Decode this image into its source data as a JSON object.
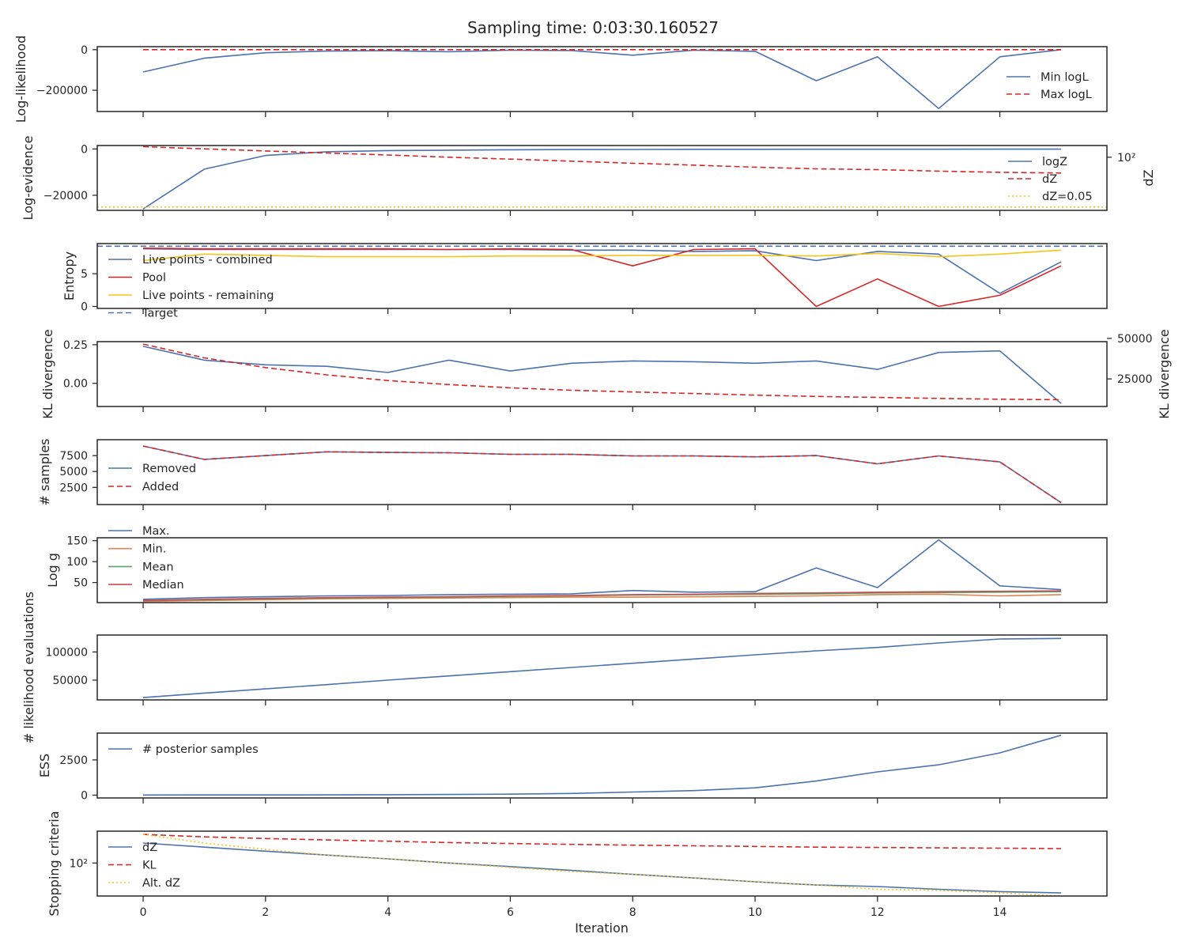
{
  "title": "Sampling time: 0:03:30.160527",
  "colors": {
    "blue": "#4c72b0",
    "red": "#d62728",
    "yellow": "#f5c518",
    "orange": "#dd8452",
    "green": "#55a868",
    "crimson": "#c44e52",
    "axis": "#262626"
  },
  "chart_data": [
    {
      "id": "loglikelihood",
      "type": "line",
      "ylabel": "Log-likelihood",
      "ylim": [
        -305000,
        15000
      ],
      "yticks": [
        0,
        -200000
      ],
      "ytick_labels": [
        "0",
        "−200000"
      ],
      "legend": "lower-right",
      "series": [
        {
          "name": "Min logL",
          "color": "blue",
          "dash": "solid",
          "x": [
            0,
            1,
            2,
            3,
            4,
            5,
            6,
            7,
            8,
            9,
            10,
            11,
            12,
            13,
            14,
            15
          ],
          "y": [
            -110000,
            -42000,
            -15000,
            -7000,
            -5000,
            -10000,
            -2000,
            -4000,
            -27000,
            -2000,
            -8000,
            -153000,
            -35000,
            -290000,
            -35000,
            0
          ]
        },
        {
          "name": "Max logL",
          "color": "red",
          "dash": "dashed",
          "x": [
            0,
            15
          ],
          "y": [
            0,
            0
          ]
        }
      ]
    },
    {
      "id": "logevidence",
      "type": "line",
      "ylabel": "Log-evidence",
      "y2label": "dZ",
      "ylim": [
        -26500,
        1500
      ],
      "yticks": [
        0,
        -20000
      ],
      "ytick_labels": [
        "0",
        "−20000"
      ],
      "y2ticks": [
        100
      ],
      "y2tick_labels": [
        "10²"
      ],
      "y2_scale": "log",
      "y2lim": [
        0.03,
        600
      ],
      "legend": "lower-right",
      "series": [
        {
          "name": "logZ",
          "color": "blue",
          "dash": "solid",
          "axis": "left",
          "x": [
            0,
            1,
            2,
            3,
            4,
            5,
            6,
            7,
            8,
            9,
            10,
            11,
            12,
            13,
            14,
            15
          ],
          "y": [
            -25900,
            -8700,
            -2800,
            -1200,
            -700,
            -500,
            -350,
            -250,
            -200,
            -150,
            -130,
            -110,
            -100,
            -90,
            -85,
            -80
          ]
        },
        {
          "name": "dZ",
          "color": "red",
          "dash": "dashed",
          "axis": "right",
          "x": [
            0,
            1,
            2,
            3,
            4,
            5,
            6,
            7,
            8,
            9,
            10,
            11,
            12,
            13,
            14,
            15
          ],
          "y": [
            500,
            360,
            260,
            190,
            140,
            100,
            75,
            55,
            40,
            30,
            22,
            17,
            15,
            12,
            10,
            9
          ]
        },
        {
          "name": "dZ=0.05",
          "color": "yellow",
          "dash": "dotted",
          "axis": "right",
          "x": [
            -0.75,
            15.75
          ],
          "y": [
            0.05,
            0.05
          ]
        }
      ]
    },
    {
      "id": "entropy",
      "type": "line",
      "ylabel": "Entropy",
      "ylim": [
        -0.3,
        9.6
      ],
      "yticks": [
        0,
        5
      ],
      "ytick_labels": [
        "0",
        "5"
      ],
      "legend": "upper-left",
      "series": [
        {
          "name": "Live points - combined",
          "color": "blue",
          "dash": "solid",
          "x": [
            0,
            1,
            2,
            3,
            4,
            5,
            6,
            7,
            8,
            9,
            10,
            11,
            12,
            13,
            14,
            15
          ],
          "y": [
            8.8,
            8.7,
            8.7,
            8.7,
            8.7,
            8.7,
            8.7,
            8.6,
            8.6,
            8.4,
            8.5,
            7.0,
            8.4,
            8.0,
            2.0,
            6.8
          ]
        },
        {
          "name": "Pool",
          "color": "red",
          "dash": "solid",
          "x": [
            0,
            1,
            2,
            3,
            4,
            5,
            6,
            7,
            8,
            9,
            10,
            11,
            12,
            13,
            14,
            15
          ],
          "y": [
            8.9,
            8.8,
            8.8,
            8.8,
            8.8,
            8.7,
            8.8,
            8.7,
            6.2,
            8.7,
            8.8,
            0.0,
            4.2,
            0.0,
            1.7,
            6.2
          ]
        },
        {
          "name": "Live points - remaining",
          "color": "yellow",
          "dash": "solid",
          "x": [
            0,
            1,
            2,
            3,
            4,
            5,
            6,
            7,
            8,
            9,
            10,
            11,
            12,
            13,
            14,
            15
          ],
          "y": [
            7.0,
            8.0,
            7.8,
            7.6,
            7.6,
            7.6,
            7.7,
            7.7,
            7.8,
            7.8,
            7.8,
            7.7,
            8.1,
            7.6,
            8.0,
            8.6
          ]
        },
        {
          "name": "Target",
          "color": "blue",
          "dash": "dashed",
          "x": [
            -0.75,
            15.75
          ],
          "y": [
            9.2,
            9.2
          ]
        }
      ]
    },
    {
      "id": "kl",
      "type": "line",
      "ylabel": "KL divergence",
      "y2label": "KL divergence",
      "ylim": [
        -0.15,
        0.27
      ],
      "yticks": [
        0.25,
        0.0
      ],
      "ytick_labels": [
        "0.25",
        "0.00"
      ],
      "y2ticks": [
        50000,
        25000
      ],
      "y2tick_labels": [
        "50000",
        "25000"
      ],
      "y2lim": [
        8000,
        48000
      ],
      "series": [
        {
          "name": "",
          "color": "blue",
          "dash": "solid",
          "axis": "left",
          "x": [
            0,
            1,
            2,
            3,
            4,
            5,
            6,
            7,
            8,
            9,
            10,
            11,
            12,
            13,
            14,
            15
          ],
          "y": [
            0.24,
            0.15,
            0.12,
            0.11,
            0.07,
            0.15,
            0.08,
            0.13,
            0.145,
            0.14,
            0.13,
            0.145,
            0.09,
            0.2,
            0.21,
            -0.13
          ]
        },
        {
          "name": "",
          "color": "red",
          "dash": "dashed",
          "axis": "right",
          "x": [
            0,
            1,
            2,
            3,
            4,
            5,
            6,
            7,
            8,
            9,
            10,
            11,
            12,
            13,
            14,
            15
          ],
          "y": [
            46500,
            38000,
            32000,
            27500,
            24000,
            21500,
            19500,
            18000,
            17000,
            16000,
            15000,
            14200,
            13600,
            13000,
            12500,
            12200
          ]
        }
      ]
    },
    {
      "id": "samples",
      "type": "line",
      "ylabel": "# samples",
      "ylim": [
        -200,
        10000
      ],
      "yticks": [
        7500,
        5000,
        2500
      ],
      "ytick_labels": [
        "7500",
        "5000",
        "2500"
      ],
      "legend": "center-left",
      "series": [
        {
          "name": "Removed",
          "color": "blue",
          "dash": "solid",
          "x": [
            0,
            1,
            2,
            3,
            4,
            5,
            6,
            7,
            8,
            9,
            10,
            11,
            12,
            13,
            14,
            15
          ],
          "y": [
            9000,
            6900,
            7500,
            8100,
            8000,
            7950,
            7700,
            7700,
            7450,
            7450,
            7300,
            7500,
            6200,
            7450,
            6500,
            100
          ]
        },
        {
          "name": "Added",
          "color": "red",
          "dash": "dashed",
          "x": [
            0,
            1,
            2,
            3,
            4,
            5,
            6,
            7,
            8,
            9,
            10,
            11,
            12,
            13,
            14,
            15
          ],
          "y": [
            9000,
            6900,
            7500,
            8100,
            8000,
            7950,
            7700,
            7700,
            7450,
            7450,
            7300,
            7500,
            6200,
            7450,
            6500,
            100
          ]
        }
      ]
    },
    {
      "id": "logg",
      "type": "line",
      "ylabel": "Log g",
      "ylim": [
        2,
        157
      ],
      "yticks": [
        150,
        100,
        50
      ],
      "ytick_labels": [
        "150",
        "100",
        "50"
      ],
      "legend": "upper-left",
      "series": [
        {
          "name": "Max.",
          "color": "blue",
          "dash": "solid",
          "x": [
            0,
            1,
            2,
            3,
            4,
            5,
            6,
            7,
            8,
            9,
            10,
            11,
            12,
            13,
            14,
            15
          ],
          "y": [
            10,
            14,
            16,
            18,
            19,
            21,
            22,
            23,
            31,
            27,
            28,
            85,
            38,
            152,
            42,
            33
          ]
        },
        {
          "name": "Min.",
          "color": "orange",
          "dash": "solid",
          "x": [
            0,
            1,
            2,
            3,
            4,
            5,
            6,
            7,
            8,
            9,
            10,
            11,
            12,
            13,
            14,
            15
          ],
          "y": [
            5,
            7,
            9,
            11,
            12,
            13,
            14,
            15,
            15,
            16,
            17,
            18,
            21,
            22,
            18,
            21
          ]
        },
        {
          "name": "Mean",
          "color": "green",
          "dash": "solid",
          "x": [
            0,
            1,
            2,
            3,
            4,
            5,
            6,
            7,
            8,
            9,
            10,
            11,
            12,
            13,
            14,
            15
          ],
          "y": [
            7,
            9,
            11,
            13,
            14,
            15,
            17,
            18,
            20,
            21,
            22,
            23,
            25,
            26,
            27,
            28
          ]
        },
        {
          "name": "Median",
          "color": "crimson",
          "dash": "solid",
          "x": [
            0,
            1,
            2,
            3,
            4,
            5,
            6,
            7,
            8,
            9,
            10,
            11,
            12,
            13,
            14,
            15
          ],
          "y": [
            7,
            10,
            12,
            14,
            15,
            16,
            18,
            19,
            21,
            22,
            24,
            25,
            27,
            28,
            29,
            30
          ]
        }
      ]
    },
    {
      "id": "evaluations",
      "type": "line",
      "ylabel": "# likelihood evaluations",
      "ylim": [
        15000,
        130000
      ],
      "yticks": [
        100000,
        50000
      ],
      "ytick_labels": [
        "100000",
        "50000"
      ],
      "series": [
        {
          "name": "",
          "color": "blue",
          "dash": "solid",
          "x": [
            0,
            1,
            2,
            3,
            4,
            5,
            6,
            7,
            8,
            9,
            10,
            11,
            12,
            13,
            14,
            15
          ],
          "y": [
            19000,
            27000,
            34500,
            42000,
            50000,
            57500,
            65000,
            72500,
            80000,
            87500,
            95000,
            102000,
            108000,
            116000,
            123000,
            124000
          ]
        }
      ]
    },
    {
      "id": "ess",
      "type": "line",
      "ylabel": "ESS",
      "ylim": [
        -200,
        4400
      ],
      "yticks": [
        2500,
        0
      ],
      "ytick_labels": [
        "2500",
        "0"
      ],
      "legend": "upper-left",
      "series": [
        {
          "name": "# posterior samples",
          "color": "blue",
          "dash": "solid",
          "x": [
            0,
            1,
            2,
            3,
            4,
            5,
            6,
            7,
            8,
            9,
            10,
            11,
            12,
            13,
            14,
            15
          ],
          "y": [
            10,
            12,
            15,
            20,
            30,
            45,
            70,
            120,
            220,
            320,
            520,
            1000,
            1650,
            2150,
            3000,
            4250
          ]
        }
      ]
    },
    {
      "id": "stopping",
      "type": "line",
      "ylabel": "Stopping criteria",
      "xlabel": "Iteration",
      "y_scale": "log",
      "ylim": [
        7,
        1300
      ],
      "yticks": [
        100
      ],
      "ytick_labels": [
        "10²"
      ],
      "xlim": [
        -0.75,
        15.75
      ],
      "xticks": [
        0,
        2,
        4,
        6,
        8,
        10,
        12,
        14
      ],
      "xtick_labels": [
        "0",
        "2",
        "4",
        "6",
        "8",
        "10",
        "12",
        "14"
      ],
      "legend": "lower-left",
      "series": [
        {
          "name": "dZ",
          "color": "blue",
          "dash": "solid",
          "x": [
            0,
            1,
            2,
            3,
            4,
            5,
            6,
            7,
            8,
            9,
            10,
            11,
            12,
            13,
            14,
            15
          ],
          "y": [
            500,
            360,
            260,
            190,
            140,
            100,
            75,
            55,
            40,
            30,
            22,
            17,
            15,
            12,
            10,
            9
          ]
        },
        {
          "name": "KL",
          "color": "red",
          "dash": "dashed",
          "x": [
            0,
            1,
            2,
            3,
            4,
            5,
            6,
            7,
            8,
            9,
            10,
            11,
            12,
            13,
            14,
            15
          ],
          "y": [
            1000,
            820,
            720,
            640,
            580,
            520,
            480,
            450,
            420,
            400,
            380,
            360,
            350,
            340,
            330,
            320
          ]
        },
        {
          "name": "Alt. dZ",
          "color": "yellow",
          "dash": "dotted",
          "x": [
            0,
            1,
            2,
            3,
            4,
            5,
            6,
            7,
            8,
            9,
            10,
            11,
            12,
            13,
            14,
            15
          ],
          "y": [
            1000,
            500,
            300,
            190,
            140,
            100,
            70,
            50,
            40,
            30,
            22,
            17,
            12,
            11,
            9,
            7
          ]
        }
      ]
    }
  ]
}
